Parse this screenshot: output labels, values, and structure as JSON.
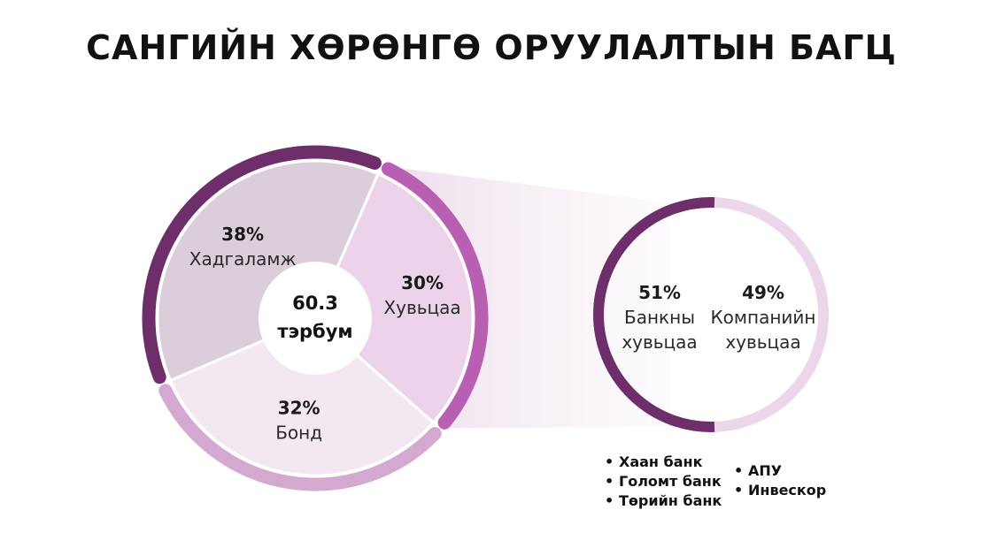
{
  "title": "САНГИЙН ХӨРӨНГӨ ОРУУЛАЛТЫН БАГЦ",
  "chart_data": [
    {
      "type": "pie",
      "center_label": [
        "60.3",
        "тэрбум"
      ],
      "slices": [
        {
          "label": "Хадгаламж",
          "value": 38,
          "value_label": "38%",
          "color": "#dccdda",
          "ring_color": "#6e2e6a"
        },
        {
          "label": "Хувьцаа",
          "value": 30,
          "value_label": "30%",
          "color": "#ecd3ea",
          "ring_color": "#b85fb2"
        },
        {
          "label": "Бонд",
          "value": 32,
          "value_label": "32%",
          "color": "#f3e8f1",
          "ring_color": "#d4a9d0"
        }
      ]
    },
    {
      "type": "pie",
      "slices": [
        {
          "label": [
            "Банкны",
            "хувьцаа"
          ],
          "value": 51,
          "value_label": "51%",
          "color": "#6e2e6a"
        },
        {
          "label": [
            "Компанийн",
            "хувьцаа"
          ],
          "value": 49,
          "value_label": "49%",
          "color": "#ecd7ea"
        }
      ]
    }
  ],
  "legend_banks": [
    "Хаан банк",
    "Голомт банк",
    "Төрийн банк"
  ],
  "legend_companies": [
    "АПУ",
    "Инвескор"
  ]
}
